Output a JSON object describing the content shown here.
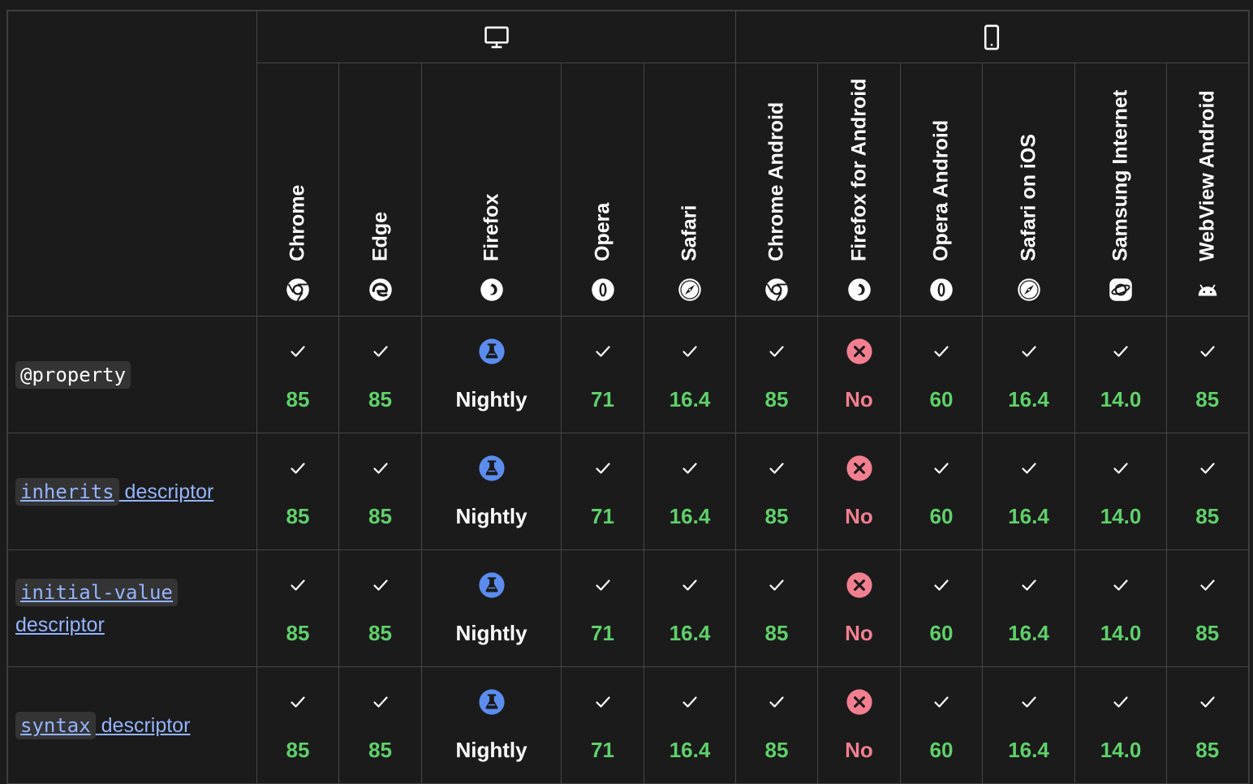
{
  "platforms": [
    {
      "name": "desktop",
      "icon": "desktop-icon"
    },
    {
      "name": "mobile",
      "icon": "mobile-icon"
    }
  ],
  "browsers": [
    {
      "name": "Chrome",
      "icon": "chrome-icon"
    },
    {
      "name": "Edge",
      "icon": "edge-icon"
    },
    {
      "name": "Firefox",
      "icon": "firefox-icon"
    },
    {
      "name": "Opera",
      "icon": "opera-icon"
    },
    {
      "name": "Safari",
      "icon": "safari-icon"
    },
    {
      "name": "Chrome Android",
      "icon": "chrome-icon"
    },
    {
      "name": "Firefox for Android",
      "icon": "firefox-icon"
    },
    {
      "name": "Opera Android",
      "icon": "opera-icon"
    },
    {
      "name": "Safari on iOS",
      "icon": "safari-icon"
    },
    {
      "name": "Samsung Internet",
      "icon": "samsung-internet-icon"
    },
    {
      "name": "WebView Android",
      "icon": "android-icon"
    }
  ],
  "features": [
    {
      "code": "@property",
      "text": "",
      "link": false
    },
    {
      "code": "inherits",
      "text": " descriptor",
      "link": true
    },
    {
      "code": "initial-value",
      "text": " descriptor",
      "link": true
    },
    {
      "code": "syntax",
      "text": " descriptor",
      "link": true
    }
  ],
  "support": [
    [
      {
        "status": "yes",
        "label": "85"
      },
      {
        "status": "yes",
        "label": "85"
      },
      {
        "status": "preview",
        "label": "Nightly"
      },
      {
        "status": "yes",
        "label": "71"
      },
      {
        "status": "yes",
        "label": "16.4"
      },
      {
        "status": "yes",
        "label": "85"
      },
      {
        "status": "no",
        "label": "No"
      },
      {
        "status": "yes",
        "label": "60"
      },
      {
        "status": "yes",
        "label": "16.4"
      },
      {
        "status": "yes",
        "label": "14.0"
      },
      {
        "status": "yes",
        "label": "85"
      }
    ],
    [
      {
        "status": "yes",
        "label": "85"
      },
      {
        "status": "yes",
        "label": "85"
      },
      {
        "status": "preview",
        "label": "Nightly"
      },
      {
        "status": "yes",
        "label": "71"
      },
      {
        "status": "yes",
        "label": "16.4"
      },
      {
        "status": "yes",
        "label": "85"
      },
      {
        "status": "no",
        "label": "No"
      },
      {
        "status": "yes",
        "label": "60"
      },
      {
        "status": "yes",
        "label": "16.4"
      },
      {
        "status": "yes",
        "label": "14.0"
      },
      {
        "status": "yes",
        "label": "85"
      }
    ],
    [
      {
        "status": "yes",
        "label": "85"
      },
      {
        "status": "yes",
        "label": "85"
      },
      {
        "status": "preview",
        "label": "Nightly"
      },
      {
        "status": "yes",
        "label": "71"
      },
      {
        "status": "yes",
        "label": "16.4"
      },
      {
        "status": "yes",
        "label": "85"
      },
      {
        "status": "no",
        "label": "No"
      },
      {
        "status": "yes",
        "label": "60"
      },
      {
        "status": "yes",
        "label": "16.4"
      },
      {
        "status": "yes",
        "label": "14.0"
      },
      {
        "status": "yes",
        "label": "85"
      }
    ],
    [
      {
        "status": "yes",
        "label": "85"
      },
      {
        "status": "yes",
        "label": "85"
      },
      {
        "status": "preview",
        "label": "Nightly"
      },
      {
        "status": "yes",
        "label": "71"
      },
      {
        "status": "yes",
        "label": "16.4"
      },
      {
        "status": "yes",
        "label": "85"
      },
      {
        "status": "no",
        "label": "No"
      },
      {
        "status": "yes",
        "label": "60"
      },
      {
        "status": "yes",
        "label": "16.4"
      },
      {
        "status": "yes",
        "label": "14.0"
      },
      {
        "status": "yes",
        "label": "85"
      }
    ]
  ],
  "colors": {
    "background": "#1b1b1b",
    "border": "#464646",
    "supported": "#5fd16a",
    "unsupported": "#f27f90",
    "preview": "#5b8def",
    "link": "#94b4ff"
  }
}
